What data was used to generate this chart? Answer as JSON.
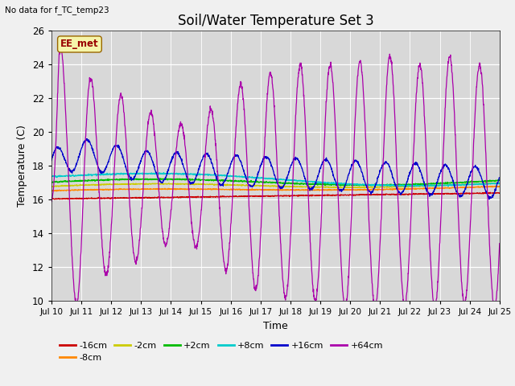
{
  "title": "Soil/Water Temperature Set 3",
  "xlabel": "Time",
  "ylabel": "Temperature (C)",
  "top_left_text": "No data for f_TC_temp23",
  "legend_label_text": "EE_met",
  "ylim": [
    10,
    26
  ],
  "yticks": [
    10,
    12,
    14,
    16,
    18,
    20,
    22,
    24,
    26
  ],
  "xlim": [
    0,
    15
  ],
  "xtick_labels": [
    "Jul 10",
    "Jul 11",
    "Jul 12",
    "Jul 13",
    "Jul 14",
    "Jul 15",
    "Jul 16",
    "Jul 17",
    "Jul 18",
    "Jul 19",
    "Jul 20",
    "Jul 21",
    "Jul 22",
    "Jul 23",
    "Jul 24",
    "Jul 25"
  ],
  "fig_bg_color": "#f0f0f0",
  "plot_bg_color": "#d8d8d8",
  "series_colors": {
    "-16cm": "#cc0000",
    "-8cm": "#ff8800",
    "-2cm": "#cccc00",
    "+2cm": "#00bb00",
    "+8cm": "#00cccc",
    "+16cm": "#0000cc",
    "+64cm": "#aa00aa"
  },
  "n_points": 2000
}
